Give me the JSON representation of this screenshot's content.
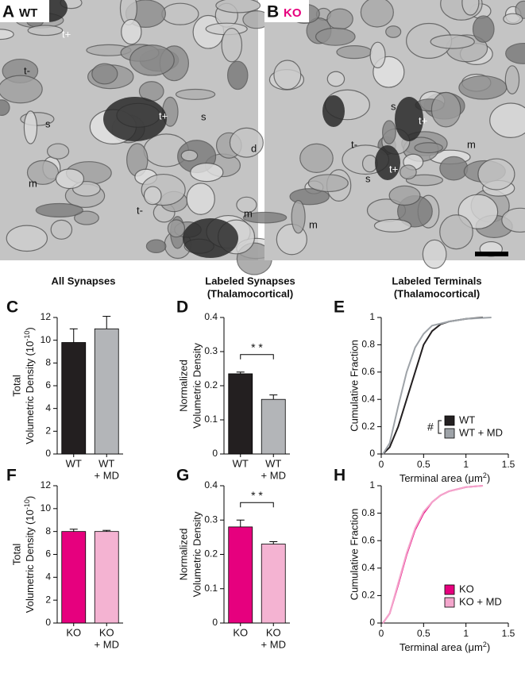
{
  "panels": {
    "A": {
      "letter": "A",
      "genotype": "WT",
      "labels": [
        "t+",
        "t-",
        "t+",
        "s",
        "s",
        "d",
        "m",
        "t-",
        "m"
      ]
    },
    "B": {
      "letter": "B",
      "genotype": "KO",
      "labels": [
        "s",
        "t+",
        "t-",
        "m",
        "s",
        "t+",
        "m"
      ]
    }
  },
  "column_titles": [
    [
      "All Synapses"
    ],
    [
      "Labeled Synapses",
      "(Thalamocortical)"
    ],
    [
      "Labeled Terminals",
      "(Thalamocortical)"
    ]
  ],
  "chart_data": [
    {
      "type": "bar",
      "letter": "C",
      "ylabel": [
        "Total",
        "Volumetric Density (10",
        "-10",
        ")"
      ],
      "categories": [
        [
          "WT"
        ],
        [
          "WT",
          "+ MD"
        ]
      ],
      "values": [
        9.8,
        11.0
      ],
      "errors": [
        1.2,
        1.1
      ],
      "colors": [
        "#231f20",
        "#b3b5b8"
      ],
      "ylim": [
        0,
        12
      ],
      "yticks": [
        0,
        2,
        4,
        6,
        8,
        10,
        12
      ]
    },
    {
      "type": "bar",
      "letter": "D",
      "ylabel": [
        "Normalized",
        "Volumetric Density"
      ],
      "categories": [
        [
          "WT"
        ],
        [
          "WT",
          "+ MD"
        ]
      ],
      "values": [
        0.235,
        0.16
      ],
      "errors": [
        0.005,
        0.013
      ],
      "colors": [
        "#231f20",
        "#b3b5b8"
      ],
      "ylim": [
        0,
        0.4
      ],
      "yticks": [
        0,
        0.1,
        0.2,
        0.3,
        0.4
      ],
      "significance": "* *"
    },
    {
      "type": "line",
      "letter": "E",
      "ylabel": [
        "Cumulative Fraction"
      ],
      "xlabel": [
        "Terminal area (μm",
        "2",
        ")"
      ],
      "xlim": [
        0,
        1.5
      ],
      "xticks": [
        0,
        0.5,
        1,
        1.5
      ],
      "ylim": [
        0,
        1
      ],
      "yticks": [
        0,
        0.2,
        0.4,
        0.6,
        0.8,
        1
      ],
      "legend": "lower right",
      "legend_marker": "#",
      "series": [
        {
          "name": "WT",
          "color": "#231f20",
          "x": [
            0.02,
            0.1,
            0.2,
            0.3,
            0.4,
            0.5,
            0.6,
            0.7,
            0.8,
            1.0,
            1.2
          ],
          "values": [
            0,
            0.05,
            0.2,
            0.4,
            0.6,
            0.8,
            0.9,
            0.95,
            0.97,
            0.99,
            1
          ]
        },
        {
          "name": "WT + MD",
          "color": "#9ea3a8",
          "x": [
            0.02,
            0.1,
            0.2,
            0.3,
            0.4,
            0.5,
            0.6,
            0.8,
            1.0,
            1.3
          ],
          "values": [
            0,
            0.08,
            0.35,
            0.6,
            0.78,
            0.88,
            0.94,
            0.97,
            0.99,
            1
          ]
        }
      ]
    },
    {
      "type": "bar",
      "letter": "F",
      "ylabel": [
        "Total",
        "Volumetric Density (10",
        "-10",
        ")"
      ],
      "categories": [
        [
          "KO"
        ],
        [
          "KO",
          "+ MD"
        ]
      ],
      "values": [
        8.0,
        8.0
      ],
      "errors": [
        0.2,
        0.1
      ],
      "colors": [
        "#e6007e",
        "#f4b3d2"
      ],
      "ylim": [
        0,
        12
      ],
      "yticks": [
        0,
        2,
        4,
        6,
        8,
        10,
        12
      ]
    },
    {
      "type": "bar",
      "letter": "G",
      "ylabel": [
        "Normalized",
        "Volumetric Density"
      ],
      "categories": [
        [
          "KO"
        ],
        [
          "KO",
          "+ MD"
        ]
      ],
      "values": [
        0.28,
        0.23
      ],
      "errors": [
        0.02,
        0.007
      ],
      "colors": [
        "#e6007e",
        "#f4b3d2"
      ],
      "ylim": [
        0,
        0.4
      ],
      "yticks": [
        0,
        0.1,
        0.2,
        0.3,
        0.4
      ],
      "significance": "* *"
    },
    {
      "type": "line",
      "letter": "H",
      "ylabel": [
        "Cumulative Fraction"
      ],
      "xlabel": [
        "Terminal area (μm",
        "2",
        ")"
      ],
      "xlim": [
        0,
        1.5
      ],
      "xticks": [
        0,
        0.5,
        1,
        1.5
      ],
      "ylim": [
        0,
        1
      ],
      "yticks": [
        0,
        0.2,
        0.4,
        0.6,
        0.8,
        1
      ],
      "legend": "lower right",
      "series": [
        {
          "name": "KO",
          "color": "#e6007e",
          "x": [
            0.02,
            0.1,
            0.2,
            0.3,
            0.4,
            0.5,
            0.6,
            0.7,
            0.8,
            1.0,
            1.2
          ],
          "values": [
            0,
            0.07,
            0.28,
            0.5,
            0.68,
            0.8,
            0.88,
            0.93,
            0.96,
            0.99,
            1
          ]
        },
        {
          "name": "KO + MD",
          "color": "#f4a6cc",
          "x": [
            0.02,
            0.1,
            0.2,
            0.3,
            0.4,
            0.5,
            0.6,
            0.7,
            0.8,
            1.0,
            1.2
          ],
          "values": [
            0,
            0.07,
            0.29,
            0.51,
            0.69,
            0.81,
            0.88,
            0.93,
            0.96,
            0.99,
            1
          ]
        }
      ]
    }
  ]
}
